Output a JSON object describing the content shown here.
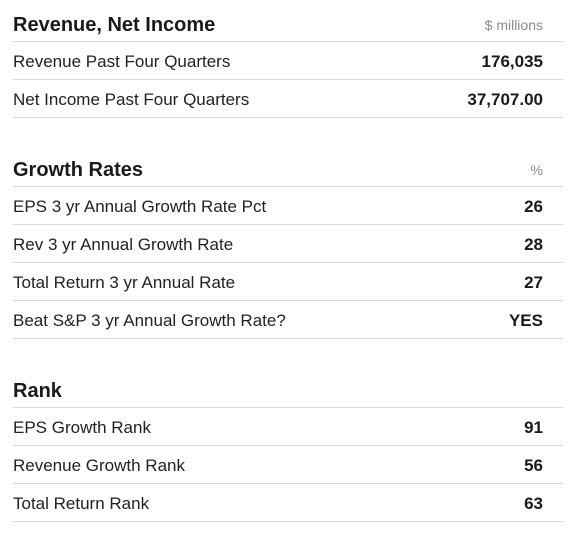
{
  "sections": [
    {
      "title": "Revenue, Net Income",
      "unit": "$ millions",
      "rows": [
        {
          "label": "Revenue Past Four Quarters",
          "value": "176,035"
        },
        {
          "label": "Net Income Past Four Quarters",
          "value": "37,707.00"
        }
      ]
    },
    {
      "title": "Growth Rates",
      "unit": "%",
      "rows": [
        {
          "label": "EPS 3 yr Annual Growth Rate Pct",
          "value": "26"
        },
        {
          "label": "Rev 3 yr Annual Growth Rate",
          "value": "28"
        },
        {
          "label": "Total Return 3 yr Annual Rate",
          "value": "27"
        },
        {
          "label": "Beat S&P 3 yr Annual Growth Rate?",
          "value": "YES"
        }
      ]
    },
    {
      "title": "Rank",
      "unit": "",
      "rows": [
        {
          "label": "EPS Growth Rank",
          "value": "91"
        },
        {
          "label": "Revenue Growth Rank",
          "value": "56"
        },
        {
          "label": "Total Return Rank",
          "value": "63"
        }
      ]
    }
  ]
}
